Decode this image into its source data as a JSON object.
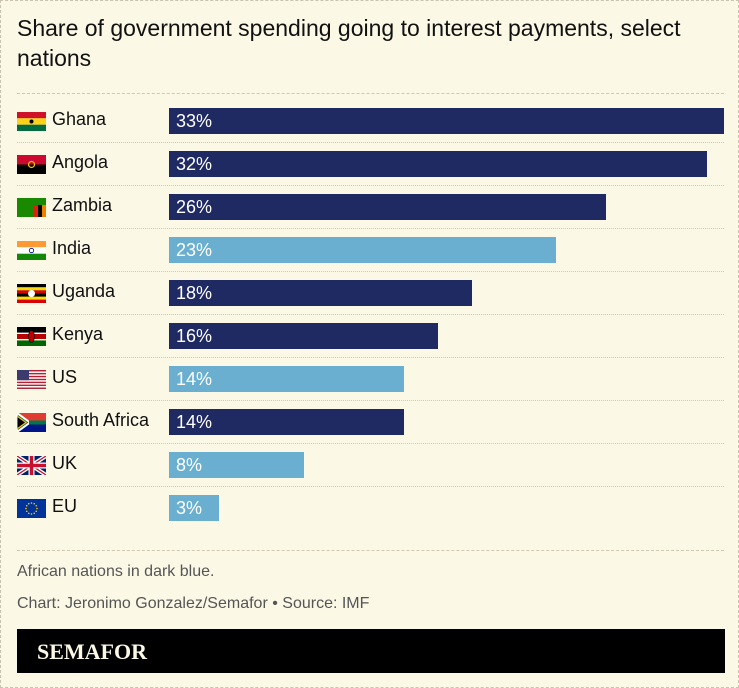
{
  "title": "Share of government spending going to interest payments, select nations",
  "colors": {
    "african": "#1f2a63",
    "other": "#6aafcf",
    "background": "#fbf8e6"
  },
  "chart_data": {
    "type": "bar",
    "orientation": "horizontal",
    "categories": [
      "Ghana",
      "Angola",
      "Zambia",
      "India",
      "Uganda",
      "Kenya",
      "US",
      "South Africa",
      "UK",
      "EU"
    ],
    "values": [
      33,
      32,
      26,
      23,
      18,
      16,
      14,
      14,
      8,
      3
    ],
    "labels": [
      "33%",
      "32%",
      "26%",
      "23%",
      "18%",
      "16%",
      "14%",
      "14%",
      "8%",
      "3%"
    ],
    "african": [
      true,
      true,
      true,
      false,
      true,
      true,
      false,
      true,
      false,
      false
    ],
    "flags": [
      "ghana-flag",
      "angola-flag",
      "zambia-flag",
      "india-flag",
      "uganda-flag",
      "kenya-flag",
      "us-flag",
      "south-africa-flag",
      "uk-flag",
      "eu-flag"
    ],
    "xlim": [
      0,
      33
    ],
    "grid": false
  },
  "notes": {
    "caption": "African nations in dark blue.",
    "credit": "Chart: Jeronimo Gonzalez/Semafor • Source: IMF"
  },
  "brand": "SEMAFOR"
}
